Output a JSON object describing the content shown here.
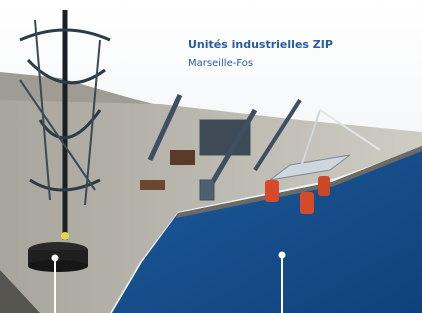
{
  "labels": {
    "title": "Unités industrielles ZIP",
    "subtitle": "Marseille-Fos"
  }
}
